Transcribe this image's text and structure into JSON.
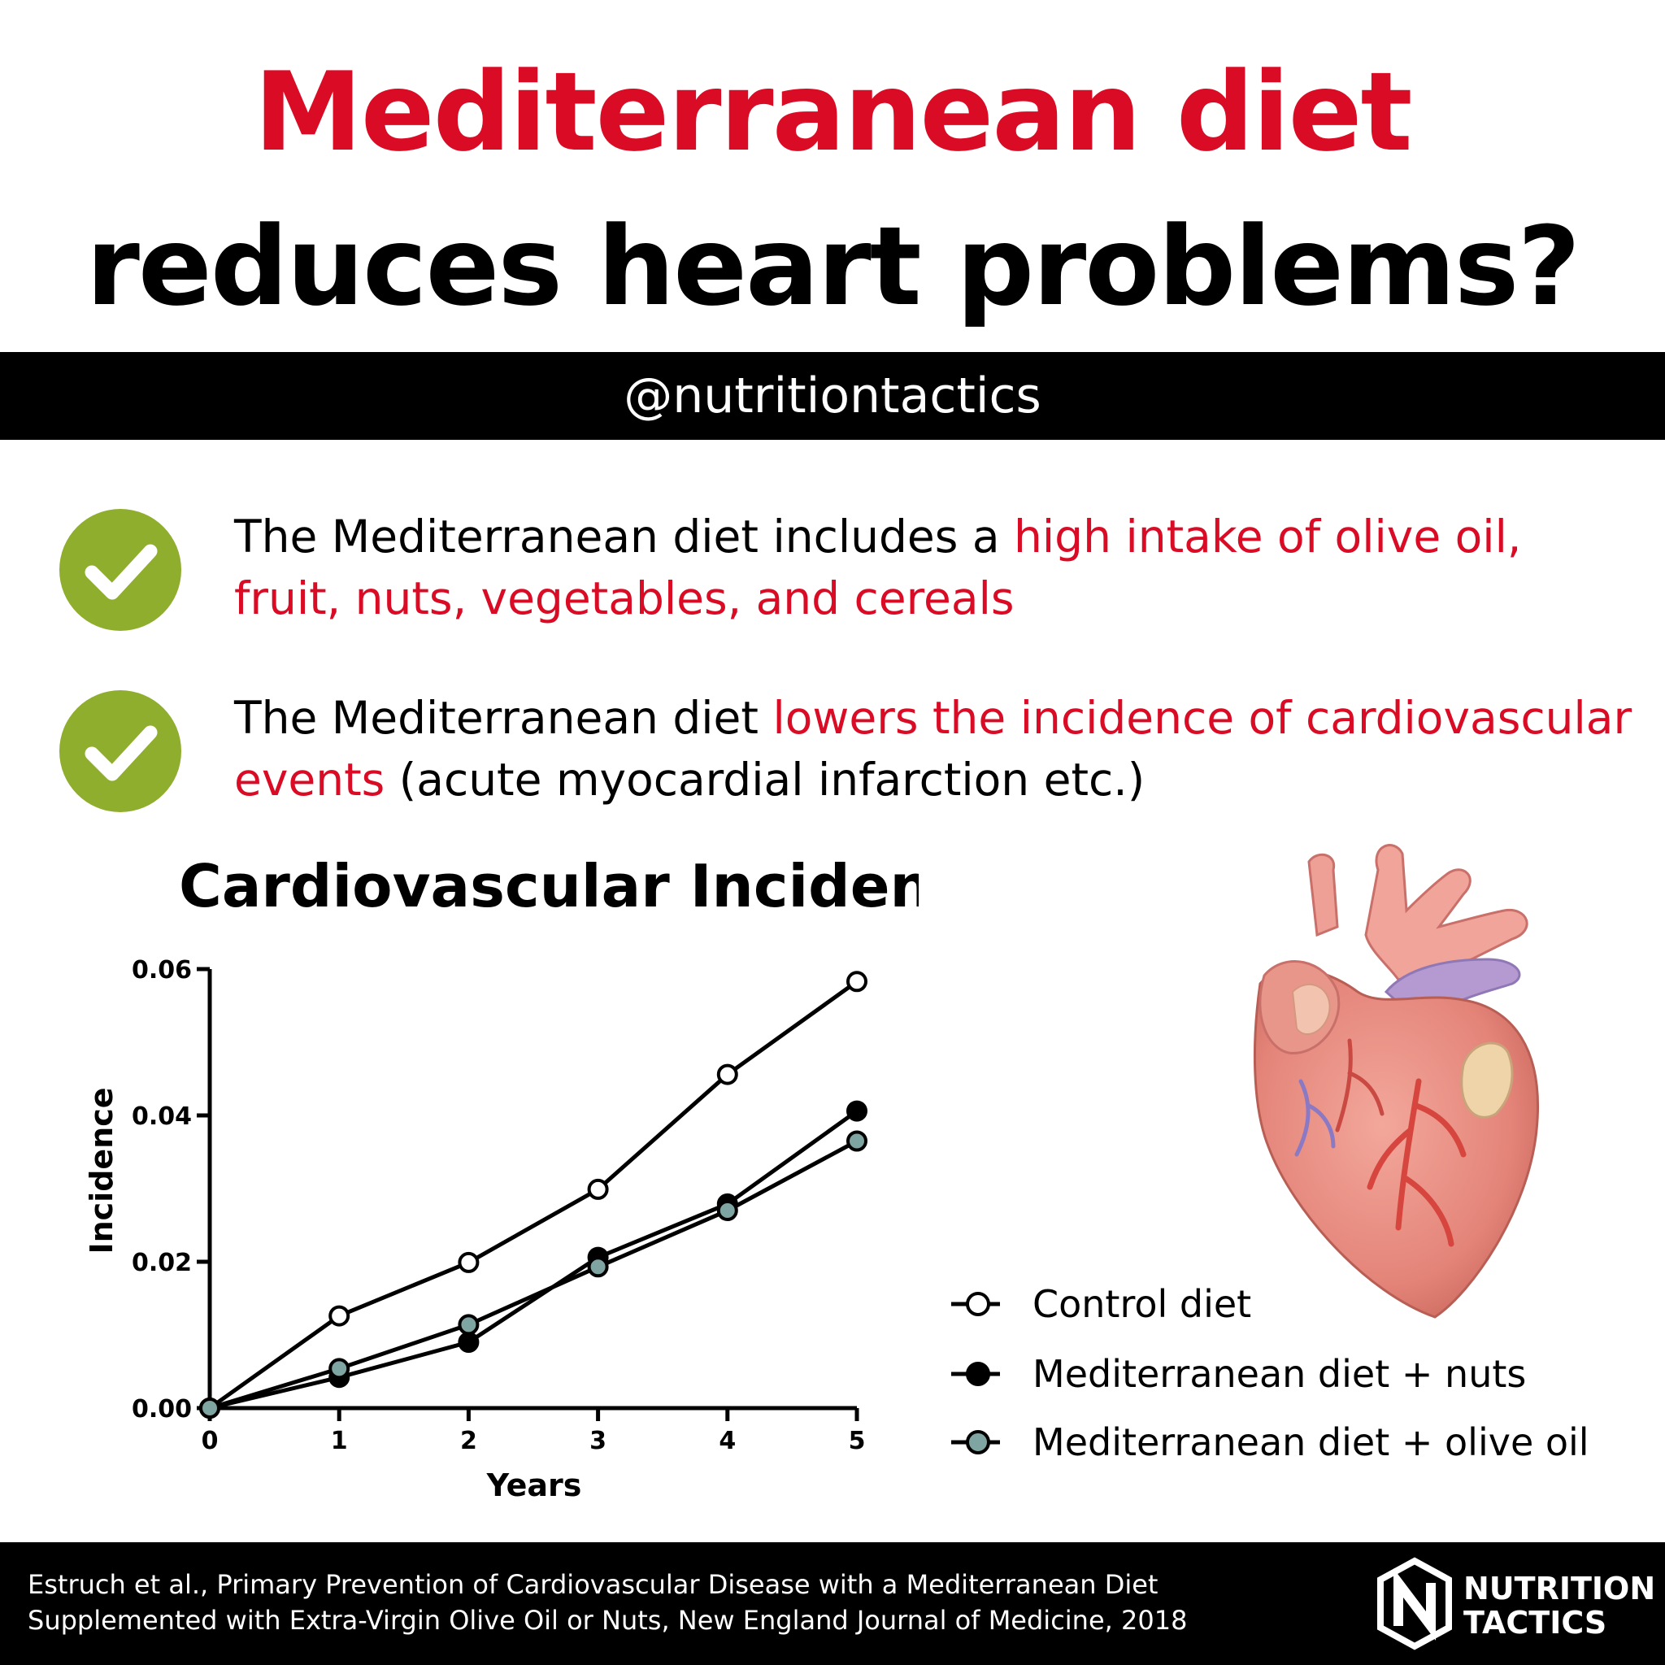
{
  "title": {
    "line1": "Mediterranean diet",
    "line2": "reduces heart problems?",
    "line1_color": "#d90b25",
    "line2_color": "#000000"
  },
  "handle": "@nutritiontactics",
  "points": [
    {
      "icon": "check-circle-icon",
      "parts": [
        {
          "text": "The Mediterranean diet includes a ",
          "color": "#000000"
        },
        {
          "text": "high intake of olive oil, fruit, nuts, vegetables, and cereals",
          "color": "#d90b25"
        }
      ]
    },
    {
      "icon": "check-circle-icon",
      "parts": [
        {
          "text": "The Mediterranean diet ",
          "color": "#000000"
        },
        {
          "text": "lowers the incidence of cardiovascular events",
          "color": "#d90b25"
        },
        {
          "text": " (acute myocardial infarction etc.)",
          "color": "#000000"
        }
      ]
    }
  ],
  "chart_data": {
    "type": "line",
    "title": "Cardiovascular Incidents",
    "xlabel": "Years",
    "ylabel": "Incidence",
    "x": [
      0,
      1,
      2,
      3,
      4,
      5
    ],
    "xlim": [
      0,
      5
    ],
    "ylim": [
      0,
      0.06
    ],
    "xticks": [
      "0",
      "1",
      "2",
      "3",
      "4",
      "5"
    ],
    "yticks": [
      "0.00",
      "0.02",
      "0.04",
      "0.06"
    ],
    "ytick_values": [
      0,
      0.02,
      0.04,
      0.06
    ],
    "grid": false,
    "legend_position": "bottom-right",
    "series": [
      {
        "name": "Control diet",
        "values": [
          0,
          0.0126,
          0.0199,
          0.0299,
          0.0456,
          0.0583
        ],
        "marker_fill": "#ffffff"
      },
      {
        "name": "Mediterranean diet + nuts",
        "values": [
          0,
          0.0042,
          0.009,
          0.0206,
          0.0279,
          0.0406
        ],
        "marker_fill": "#000000"
      },
      {
        "name": "Mediterranean diet + olive oil",
        "values": [
          0,
          0.0054,
          0.0114,
          0.0193,
          0.027,
          0.0365
        ],
        "marker_fill": "#7fa5a3"
      }
    ]
  },
  "heart_image": "anatomical-heart-illustration",
  "citation": {
    "line1": "Estruch et al., Primary Prevention of Cardiovascular Disease with a Mediterranean Diet",
    "line2": "Supplemented with Extra-Virgin Olive Oil or Nuts, New England Journal of Medicine, 2018"
  },
  "logo": {
    "line1": "NUTRITION",
    "line2": "TACTICS"
  }
}
